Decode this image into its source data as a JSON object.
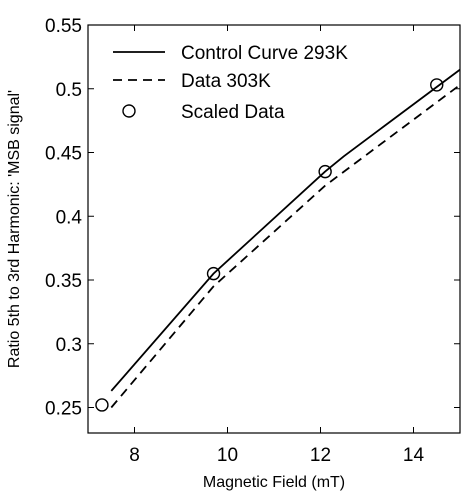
{
  "chart_data": {
    "type": "line",
    "xlabel": "Magnetic Field (mT)",
    "ylabel": "Ratio 5th to 3rd Harmonic:  'MSB signal'",
    "xlim": [
      7,
      15
    ],
    "ylim": [
      0.23,
      0.55
    ],
    "xticks": [
      8,
      10,
      12,
      14
    ],
    "xtick_labels": [
      "8",
      "10",
      "12",
      "14"
    ],
    "yticks": [
      0.25,
      0.3,
      0.35,
      0.4,
      0.45,
      0.5,
      0.55
    ],
    "ytick_labels": [
      "0.25",
      "0.3",
      "0.35",
      "0.4",
      "0.45",
      "0.5",
      "0.55"
    ],
    "grid": false,
    "legend_position": "top-left",
    "series": [
      {
        "name": "Control Curve 293K",
        "style": "solid",
        "color": "#000000",
        "x": [
          7.5,
          9.7,
          12.1,
          12.5,
          15.0
        ],
        "y": [
          0.263,
          0.355,
          0.435,
          0.447,
          0.515
        ]
      },
      {
        "name": "Data 303K",
        "style": "dashed",
        "color": "#000000",
        "x": [
          7.5,
          9.7,
          12.1,
          15.0
        ],
        "y": [
          0.25,
          0.345,
          0.424,
          0.503
        ]
      },
      {
        "name": "Scaled Data",
        "style": "markers-circle",
        "color": "#000000",
        "x": [
          7.3,
          9.7,
          12.1,
          14.5
        ],
        "y": [
          0.252,
          0.355,
          0.435,
          0.503
        ]
      }
    ]
  }
}
